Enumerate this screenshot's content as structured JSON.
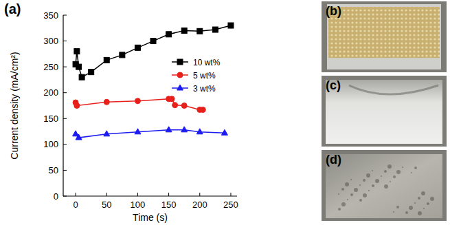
{
  "chart_data": {
    "type": "line",
    "annotations": [
      "(a)"
    ],
    "x_label": "Time (s)",
    "y_label": "Current density (mA/cm²)",
    "xlim": [
      -20,
      260
    ],
    "xticks": [
      0,
      50,
      100,
      150,
      200,
      250
    ],
    "ylim": [
      0,
      350
    ],
    "yticks": [
      0,
      50,
      100,
      150,
      200,
      250,
      300,
      350
    ],
    "legend": "right",
    "series": [
      {
        "name": "10 wt%",
        "color": "#000000",
        "marker": "square",
        "line_style": "solid",
        "x": [
          0,
          2,
          5,
          10,
          25,
          50,
          75,
          100,
          125,
          150,
          175,
          200,
          225,
          250
        ],
        "values": [
          255,
          280,
          250,
          230,
          240,
          263,
          273,
          287,
          300,
          313,
          320,
          319,
          322,
          330
        ]
      },
      {
        "name": "5 wt%",
        "color": "#e8201c",
        "marker": "circle",
        "line_style": "solid",
        "x": [
          0,
          2,
          50,
          100,
          150,
          155,
          160,
          175,
          200,
          205
        ],
        "values": [
          181,
          175,
          182,
          184,
          188,
          188,
          176,
          175,
          167,
          167
        ]
      },
      {
        "name": "3 wt%",
        "color": "#1c1cf0",
        "marker": "triangle",
        "line_style": "solid",
        "x": [
          0,
          5,
          50,
          100,
          150,
          175,
          200,
          240
        ],
        "values": [
          120,
          113,
          120,
          124,
          128,
          128,
          124,
          122
        ]
      }
    ]
  },
  "photos": [
    {
      "label": "(b)"
    },
    {
      "label": "(c)"
    },
    {
      "label": "(d)"
    }
  ]
}
